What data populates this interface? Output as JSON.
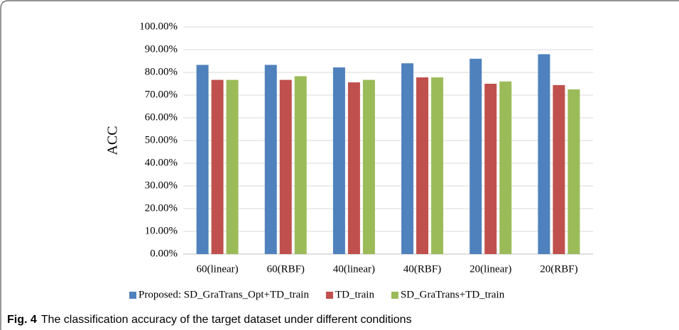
{
  "chart_data": {
    "type": "bar",
    "ylabel": "ACC",
    "categories": [
      "60(linear)",
      "60(RBF)",
      "40(linear)",
      "40(RBF)",
      "20(linear)",
      "20(RBF)"
    ],
    "series": [
      {
        "name": "Proposed: SD_GraTrans_Opt+TD_train",
        "color": "#4f81bd",
        "values": [
          83.3,
          83.3,
          82.2,
          84.0,
          86.0,
          88.0
        ]
      },
      {
        "name": "TD_train",
        "color": "#c0504d",
        "values": [
          76.7,
          76.7,
          75.6,
          77.8,
          75.0,
          74.4
        ]
      },
      {
        "name": "SD_GraTrans+TD_train",
        "color": "#9bbb59",
        "values": [
          76.7,
          78.3,
          76.7,
          77.8,
          76.0,
          72.5
        ]
      }
    ],
    "ylim": [
      0,
      100
    ],
    "yticks": [
      {
        "value": 0,
        "label": "0.00%"
      },
      {
        "value": 10,
        "label": "10.00%"
      },
      {
        "value": 20,
        "label": "20.00%"
      },
      {
        "value": 30,
        "label": "30.00%"
      },
      {
        "value": 40,
        "label": "40.00%"
      },
      {
        "value": 50,
        "label": "50.00%"
      },
      {
        "value": 60,
        "label": "60.00%"
      },
      {
        "value": 70,
        "label": "70.00%"
      },
      {
        "value": 80,
        "label": "80.00%"
      },
      {
        "value": 90,
        "label": "90.00%"
      },
      {
        "value": 100,
        "label": "100.00%"
      }
    ],
    "grid": true,
    "legend": "bottom",
    "caption_label": "Fig. 4",
    "caption": "The classification accuracy of the target dataset under different conditions"
  }
}
